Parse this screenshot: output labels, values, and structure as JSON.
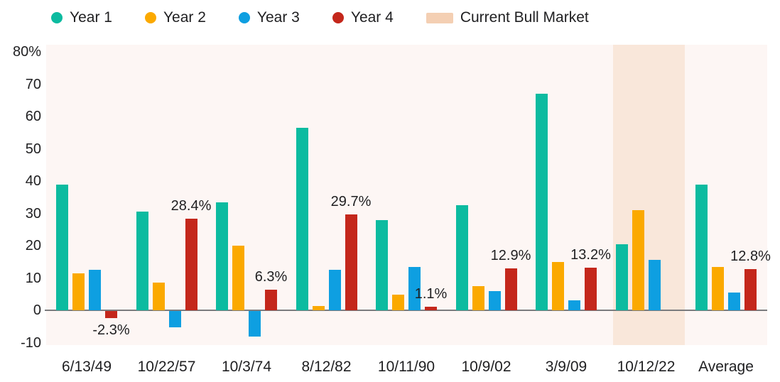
{
  "legend": [
    {
      "label": "Year 1",
      "color": "#0CBBA0",
      "swatch": "dot"
    },
    {
      "label": "Year 2",
      "color": "#FBA900",
      "swatch": "dot"
    },
    {
      "label": "Year 3",
      "color": "#0E9FE1",
      "swatch": "dot"
    },
    {
      "label": "Year 4",
      "color": "#C4271B",
      "swatch": "dot"
    },
    {
      "label": "Current Bull Market",
      "color": "#F4CFB3",
      "swatch": "band"
    }
  ],
  "chart_data": {
    "type": "bar",
    "title": "",
    "xlabel": "",
    "ylabel": "",
    "grid": false,
    "legend_position": "top",
    "plot_background": "#FDF6F4",
    "categories": [
      "6/13/49",
      "10/22/57",
      "10/3/74",
      "8/12/82",
      "10/11/90",
      "10/9/02",
      "3/9/09",
      "10/12/22",
      "Average"
    ],
    "series": [
      {
        "name": "Year 1",
        "color": "#0CBBA0",
        "values": [
          39,
          30.5,
          33.5,
          56.5,
          28,
          32.5,
          67,
          20.5,
          39
        ]
      },
      {
        "name": "Year 2",
        "color": "#FBA900",
        "values": [
          11.5,
          8.5,
          20,
          1.3,
          4.8,
          7.5,
          15,
          31,
          13.5
        ]
      },
      {
        "name": "Year 3",
        "color": "#0E9FE1",
        "values": [
          12.5,
          -5,
          -8,
          12.5,
          13.5,
          6,
          3,
          15.5,
          5.6
        ]
      },
      {
        "name": "Year 4",
        "color": "#C4271B",
        "values": [
          -2.3,
          28.4,
          6.3,
          29.7,
          1.1,
          12.9,
          13.2,
          null,
          12.8
        ]
      }
    ],
    "annotations": [
      {
        "category_index": 0,
        "series": "Year 4",
        "text": "-2.3%",
        "position": "below"
      },
      {
        "category_index": 1,
        "series": "Year 4",
        "text": "28.4%",
        "position": "above"
      },
      {
        "category_index": 2,
        "series": "Year 4",
        "text": "6.3%",
        "position": "above"
      },
      {
        "category_index": 3,
        "series": "Year 4",
        "text": "29.7%",
        "position": "above"
      },
      {
        "category_index": 4,
        "series": "Year 4",
        "text": "1.1%",
        "position": "above"
      },
      {
        "category_index": 5,
        "series": "Year 4",
        "text": "12.9%",
        "position": "above"
      },
      {
        "category_index": 6,
        "series": "Year 4",
        "text": "13.2%",
        "position": "above"
      },
      {
        "category_index": 8,
        "series": "Year 4",
        "text": "12.8%",
        "position": "above"
      }
    ],
    "y_axis": {
      "tick_labels": [
        "80%",
        "70",
        "60",
        "50",
        "40",
        "30",
        "20",
        "10",
        "0",
        "-10"
      ],
      "tick_values": [
        80,
        70,
        60,
        50,
        40,
        30,
        20,
        10,
        0,
        -10
      ],
      "ylim": [
        -10.8,
        82
      ]
    },
    "highlight": {
      "category": "10/12/22",
      "label": "Current Bull Market",
      "color": "#F9E7DA"
    }
  }
}
